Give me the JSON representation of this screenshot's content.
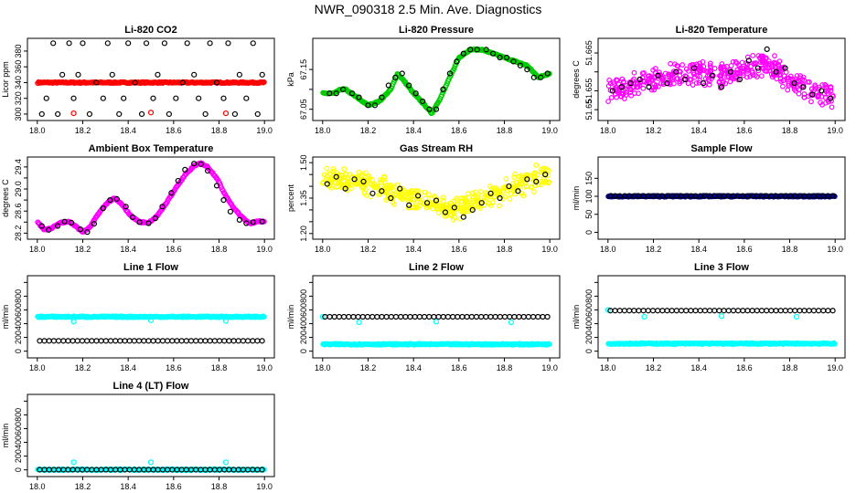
{
  "figure": {
    "title": "NWR_090318  2.5 Min. Ave. Diagnostics"
  },
  "chart_data": [
    {
      "type": "scatter",
      "title": "Li-820 CO2",
      "xlabel": "",
      "ylabel": "Licor ppm",
      "xlim": [
        18.0,
        19.0
      ],
      "ylim": [
        296,
        392
      ],
      "xticks": [
        18.0,
        18.2,
        18.4,
        18.6,
        18.8,
        19.0
      ],
      "yticks": [
        300,
        320,
        340,
        360,
        380
      ],
      "yticklabels": [
        "300",
        "320",
        "340",
        "360",
        "380"
      ],
      "series": [
        {
          "color": "#ff0000",
          "pattern": "dense",
          "values": [
            340,
            340,
            340,
            340
          ]
        },
        {
          "color": "#ff0000",
          "pattern": "sparse",
          "x": [
            18.16,
            18.5,
            18.83
          ],
          "y": [
            301,
            302,
            301
          ]
        },
        {
          "color": "#000000",
          "pattern": "sparse",
          "x": [
            18.02,
            18.04,
            18.07,
            18.09,
            18.11,
            18.14,
            18.16,
            18.18,
            18.2,
            18.23,
            18.26,
            18.29,
            18.31,
            18.33,
            18.36,
            18.38,
            18.4,
            18.43,
            18.46,
            18.48,
            18.51,
            18.53,
            18.56,
            18.58,
            18.61,
            18.64,
            18.66,
            18.69,
            18.71,
            18.74,
            18.76,
            18.79,
            18.82,
            18.84,
            18.87,
            18.89,
            18.92,
            18.95,
            18.97,
            18.99
          ],
          "y": [
            300,
            320,
            390,
            300,
            350,
            390,
            320,
            350,
            390,
            300,
            340,
            320,
            390,
            350,
            300,
            320,
            390,
            340,
            300,
            390,
            320,
            350,
            390,
            300,
            320,
            340,
            390,
            350,
            320,
            300,
            390,
            340,
            320,
            390,
            300,
            350,
            320,
            390,
            300,
            350
          ]
        }
      ]
    },
    {
      "type": "scatter",
      "title": "Li-820 Pressure",
      "xlabel": "",
      "ylabel": "kPa",
      "xlim": [
        18.0,
        19.0
      ],
      "ylim": [
        67.03,
        67.22
      ],
      "xticks": [
        18.0,
        18.2,
        18.4,
        18.6,
        18.8,
        19.0
      ],
      "yticks": [
        67.05,
        67.1,
        67.15
      ],
      "yticklabels": [
        "67.05",
        "",
        "67.15"
      ],
      "series": [
        {
          "color": "#00cc00",
          "pattern": "dense",
          "x": [
            18.0,
            18.05,
            18.08,
            18.1,
            18.15,
            18.2,
            18.25,
            18.3,
            18.33,
            18.36,
            18.4,
            18.45,
            18.48,
            18.52,
            18.56,
            18.6,
            18.65,
            18.7,
            18.75,
            18.8,
            18.85,
            18.9,
            18.95,
            19.0
          ],
          "y": [
            67.09,
            67.09,
            67.1,
            67.1,
            67.08,
            67.06,
            67.07,
            67.1,
            67.14,
            67.12,
            67.09,
            67.06,
            67.04,
            67.08,
            67.13,
            67.18,
            67.2,
            67.2,
            67.19,
            67.18,
            67.17,
            67.16,
            67.13,
            67.14
          ]
        },
        {
          "color": "#000000",
          "pattern": "sparse",
          "x": [
            18.03,
            18.06,
            18.09,
            18.13,
            18.16,
            18.2,
            18.23,
            18.26,
            18.29,
            18.32,
            18.35,
            18.38,
            18.41,
            18.44,
            18.47,
            18.5,
            18.53,
            18.56,
            18.59,
            18.62,
            18.65,
            18.68,
            18.72,
            18.75,
            18.78,
            18.81,
            18.84,
            18.87,
            18.9,
            18.93,
            18.96,
            18.99
          ],
          "y": [
            67.09,
            67.09,
            67.1,
            67.09,
            67.08,
            67.06,
            67.06,
            67.08,
            67.11,
            67.13,
            67.14,
            67.11,
            67.09,
            67.07,
            67.05,
            67.05,
            67.1,
            67.14,
            67.17,
            67.19,
            67.2,
            67.2,
            67.2,
            67.19,
            67.18,
            67.18,
            67.17,
            67.16,
            67.15,
            67.13,
            67.13,
            67.14
          ]
        }
      ]
    },
    {
      "type": "scatter",
      "title": "Li-820 Temperature",
      "xlabel": "",
      "ylabel": "degrees C",
      "xlim": [
        18.0,
        19.0
      ],
      "ylim": [
        51.648,
        51.668
      ],
      "xticks": [
        18.0,
        18.2,
        18.4,
        18.6,
        18.8,
        19.0
      ],
      "yticks": [
        51.65,
        51.655,
        51.66,
        51.665
      ],
      "yticklabels": [
        "51.65",
        "51.655",
        "",
        "51.665"
      ],
      "series": [
        {
          "color": "#ff00ff",
          "pattern": "noisy",
          "x": [
            18.0,
            18.1,
            18.2,
            18.3,
            18.4,
            18.5,
            18.6,
            18.7,
            18.8,
            18.9,
            19.0
          ],
          "y": [
            51.655,
            51.656,
            51.658,
            51.659,
            51.66,
            51.659,
            51.661,
            51.662,
            51.658,
            51.654,
            51.653
          ]
        },
        {
          "color": "#000000",
          "pattern": "sparse",
          "x": [
            18.02,
            18.06,
            18.1,
            18.14,
            18.18,
            18.22,
            18.26,
            18.3,
            18.34,
            18.38,
            18.42,
            18.46,
            18.5,
            18.54,
            18.58,
            18.62,
            18.66,
            18.7,
            18.74,
            18.78,
            18.82,
            18.86,
            18.9,
            18.94,
            18.98
          ],
          "y": [
            51.655,
            51.656,
            51.657,
            51.658,
            51.656,
            51.659,
            51.657,
            51.66,
            51.658,
            51.661,
            51.657,
            51.659,
            51.656,
            51.66,
            51.658,
            51.663,
            51.661,
            51.666,
            51.66,
            51.661,
            51.657,
            51.656,
            51.654,
            51.655,
            51.653
          ]
        }
      ]
    },
    {
      "type": "scatter",
      "title": "Ambient Box Temperature",
      "xlabel": "",
      "ylabel": "degrees C",
      "xlim": [
        18.0,
        19.0
      ],
      "ylim": [
        28.15,
        29.52
      ],
      "xticks": [
        18.0,
        18.2,
        18.4,
        18.6,
        18.8,
        19.0
      ],
      "yticks": [
        28.2,
        28.4,
        28.6,
        28.8,
        29.0,
        29.2,
        29.4
      ],
      "yticklabels": [
        "28.2",
        "",
        "28.6",
        "",
        "29.0",
        "",
        "29.4"
      ],
      "series": [
        {
          "color": "#ff00ff",
          "pattern": "dense",
          "x": [
            18.0,
            18.03,
            18.06,
            18.1,
            18.14,
            18.17,
            18.2,
            18.23,
            18.27,
            18.31,
            18.34,
            18.37,
            18.41,
            18.45,
            18.49,
            18.53,
            18.57,
            18.61,
            18.65,
            18.69,
            18.72,
            18.75,
            18.79,
            18.82,
            18.86,
            18.9,
            18.94,
            18.97,
            19.0
          ],
          "y": [
            28.4,
            28.27,
            28.28,
            28.39,
            28.41,
            28.32,
            28.22,
            28.3,
            28.56,
            28.76,
            28.83,
            28.73,
            28.52,
            28.4,
            28.39,
            28.52,
            28.76,
            29.02,
            29.25,
            29.42,
            29.47,
            29.4,
            29.2,
            28.95,
            28.68,
            28.49,
            28.37,
            28.42,
            28.41
          ]
        },
        {
          "color": "#000000",
          "pattern": "sparse",
          "x": [
            18.02,
            18.05,
            18.09,
            18.12,
            18.15,
            18.19,
            18.22,
            18.25,
            18.29,
            18.32,
            18.35,
            18.39,
            18.42,
            18.45,
            18.49,
            18.52,
            18.55,
            18.59,
            18.62,
            18.65,
            18.69,
            18.72,
            18.75,
            18.79,
            18.82,
            18.85,
            18.89,
            18.92,
            18.95,
            18.99
          ],
          "y": [
            28.33,
            28.26,
            28.33,
            28.41,
            28.39,
            28.27,
            28.22,
            28.37,
            28.65,
            28.8,
            28.82,
            28.68,
            28.49,
            28.4,
            28.38,
            28.47,
            28.68,
            28.93,
            29.15,
            29.35,
            29.46,
            29.45,
            29.33,
            29.06,
            28.8,
            28.59,
            28.44,
            28.38,
            28.4,
            28.41
          ]
        }
      ]
    },
    {
      "type": "scatter",
      "title": "Gas Stream RH",
      "xlabel": "",
      "ylabel": "percent",
      "xlim": [
        18.0,
        19.0
      ],
      "ylim": [
        1.19,
        1.51
      ],
      "xticks": [
        18.0,
        18.2,
        18.4,
        18.6,
        18.8,
        19.0
      ],
      "yticks": [
        1.2,
        1.25,
        1.3,
        1.35,
        1.4,
        1.45,
        1.5
      ],
      "yticklabels": [
        "1.20",
        "",
        "",
        "1.35",
        "",
        "",
        "1.50"
      ],
      "series": [
        {
          "color": "#ffff00",
          "pattern": "noisy",
          "x": [
            18.0,
            18.1,
            18.2,
            18.3,
            18.4,
            18.5,
            18.6,
            18.7,
            18.8,
            18.9,
            19.0
          ],
          "y": [
            1.43,
            1.43,
            1.41,
            1.38,
            1.35,
            1.32,
            1.3,
            1.34,
            1.38,
            1.42,
            1.46
          ]
        },
        {
          "color": "#000000",
          "pattern": "sparse",
          "x": [
            18.02,
            18.06,
            18.1,
            18.14,
            18.18,
            18.22,
            18.26,
            18.3,
            18.34,
            18.38,
            18.42,
            18.46,
            18.5,
            18.54,
            18.58,
            18.62,
            18.66,
            18.7,
            18.74,
            18.78,
            18.82,
            18.86,
            18.9,
            18.94,
            18.98
          ],
          "y": [
            1.41,
            1.44,
            1.39,
            1.43,
            1.42,
            1.37,
            1.38,
            1.35,
            1.39,
            1.32,
            1.36,
            1.33,
            1.34,
            1.29,
            1.31,
            1.27,
            1.3,
            1.33,
            1.37,
            1.35,
            1.4,
            1.38,
            1.43,
            1.42,
            1.45
          ]
        }
      ]
    },
    {
      "type": "scatter",
      "title": "Sample Flow",
      "xlabel": "",
      "ylabel": "ml/min",
      "xlim": [
        18.0,
        19.0
      ],
      "ylim": [
        -10,
        200
      ],
      "xticks": [
        18.0,
        18.2,
        18.4,
        18.6,
        18.8,
        19.0
      ],
      "yticks": [
        0,
        50,
        100,
        150
      ],
      "yticklabels": [
        "0",
        "50",
        "100",
        "150"
      ],
      "series": [
        {
          "color": "#00008b",
          "pattern": "dense",
          "values": [
            100,
            100,
            100,
            100
          ]
        },
        {
          "color": "#000000",
          "pattern": "sparse",
          "values": [
            101,
            101,
            101,
            101
          ]
        }
      ]
    },
    {
      "type": "scatter",
      "title": "Line 1 Flow",
      "xlabel": "",
      "ylabel": "ml/min",
      "xlim": [
        18.0,
        19.0
      ],
      "ylim": [
        -50,
        1050
      ],
      "xticks": [
        18.0,
        18.2,
        18.4,
        18.6,
        18.8,
        19.0
      ],
      "yticks": [
        0,
        200,
        400,
        600,
        800,
        1000
      ],
      "yticklabels": [
        "0",
        "200",
        "400",
        "600",
        "800",
        ""
      ],
      "series": [
        {
          "color": "#00ffff",
          "pattern": "dense",
          "values": [
            500,
            500,
            500,
            500
          ]
        },
        {
          "color": "#00ffff",
          "pattern": "sparse",
          "x": [
            18.16,
            18.5,
            18.83
          ],
          "y": [
            430,
            450,
            440
          ]
        },
        {
          "color": "#000000",
          "pattern": "sparse",
          "values": [
            150,
            150,
            150,
            150
          ]
        }
      ]
    },
    {
      "type": "scatter",
      "title": "Line 2 Flow",
      "xlabel": "",
      "ylabel": "ml/min",
      "xlim": [
        18.0,
        19.0
      ],
      "ylim": [
        -50,
        1050
      ],
      "xticks": [
        18.0,
        18.2,
        18.4,
        18.6,
        18.8,
        19.0
      ],
      "yticks": [
        0,
        200,
        400,
        600,
        800,
        1000
      ],
      "yticklabels": [
        "0",
        "200",
        "400",
        "600",
        "800",
        ""
      ],
      "series": [
        {
          "color": "#00ffff",
          "pattern": "dense",
          "values": [
            100,
            100,
            100,
            100
          ]
        },
        {
          "color": "#00ffff",
          "pattern": "sparse",
          "x": [
            18.0,
            18.16,
            18.5,
            18.83
          ],
          "y": [
            500,
            420,
            430,
            420
          ]
        },
        {
          "color": "#000000",
          "pattern": "sparse",
          "values": [
            500,
            500,
            500,
            500
          ]
        }
      ]
    },
    {
      "type": "scatter",
      "title": "Line 3 Flow",
      "xlabel": "",
      "ylabel": "ml/min",
      "xlim": [
        18.0,
        19.0
      ],
      "ylim": [
        -50,
        1050
      ],
      "xticks": [
        18.0,
        18.2,
        18.4,
        18.6,
        18.8,
        19.0
      ],
      "yticks": [
        0,
        200,
        400,
        600,
        800,
        1000
      ],
      "yticklabels": [
        "0",
        "200",
        "400",
        "600",
        "800",
        ""
      ],
      "series": [
        {
          "color": "#00ffff",
          "pattern": "dense",
          "values": [
            110,
            110,
            110,
            110
          ]
        },
        {
          "color": "#00ffff",
          "pattern": "sparse",
          "x": [
            18.0,
            18.16,
            18.5,
            18.83
          ],
          "y": [
            600,
            500,
            510,
            500
          ]
        },
        {
          "color": "#000000",
          "pattern": "sparse",
          "values": [
            590,
            590,
            590,
            590
          ]
        }
      ]
    },
    {
      "type": "scatter",
      "title": "Line 4 (LT) Flow",
      "xlabel": "",
      "ylabel": "ml/min",
      "xlim": [
        18.0,
        19.0
      ],
      "ylim": [
        -50,
        1050
      ],
      "xticks": [
        18.0,
        18.2,
        18.4,
        18.6,
        18.8,
        19.0
      ],
      "yticks": [
        0,
        200,
        400,
        600,
        800,
        1000
      ],
      "yticklabels": [
        "0",
        "200",
        "400",
        "600",
        "800",
        ""
      ],
      "series": [
        {
          "color": "#00ffff",
          "pattern": "dense",
          "values": [
            2,
            2,
            2,
            2
          ]
        },
        {
          "color": "#00ffff",
          "pattern": "sparse",
          "x": [
            18.16,
            18.5,
            18.83
          ],
          "y": [
            110,
            110,
            110
          ]
        },
        {
          "color": "#000000",
          "pattern": "sparse",
          "values": [
            2,
            2,
            2,
            2
          ]
        }
      ]
    }
  ]
}
